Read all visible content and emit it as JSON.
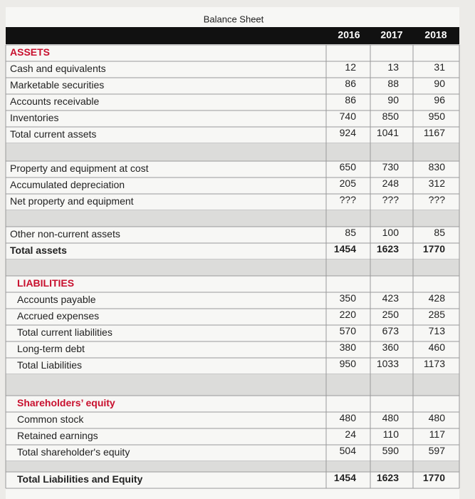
{
  "title": "Balance Sheet",
  "columns": [
    2016,
    2017,
    2018
  ],
  "sections": [
    {
      "heading": "ASSETS",
      "rows": [
        {
          "label": "Cash and equivalents",
          "values": [
            12,
            13,
            31
          ]
        },
        {
          "label": "Marketable securities",
          "values": [
            86,
            88,
            90
          ]
        },
        {
          "label": "Accounts receivable",
          "values": [
            86,
            90,
            96
          ]
        },
        {
          "label": "Inventories",
          "values": [
            740,
            850,
            950
          ]
        },
        {
          "label": "Total current assets",
          "values": [
            924,
            1041,
            1167
          ]
        }
      ]
    },
    {
      "rows": [
        {
          "label": "Property and equipment at cost",
          "values": [
            650,
            730,
            830
          ]
        },
        {
          "label": "Accumulated depreciation",
          "values": [
            205,
            248,
            312
          ]
        },
        {
          "label": "Net property and equipment",
          "values": [
            "???",
            "???",
            "???"
          ]
        }
      ]
    },
    {
      "rows": [
        {
          "label": "Other non-current assets",
          "values": [
            85,
            100,
            85
          ]
        },
        {
          "label": "Total assets",
          "values": [
            1454,
            1623,
            1770
          ],
          "bold": true
        }
      ]
    },
    {
      "heading": "LIABILITIES",
      "rows": [
        {
          "label": "Accounts payable",
          "values": [
            350,
            423,
            428
          ]
        },
        {
          "label": "Accrued expenses",
          "values": [
            220,
            250,
            285
          ]
        },
        {
          "label": "Total current liabilities",
          "values": [
            570,
            673,
            713
          ]
        },
        {
          "label": "Long-term debt",
          "values": [
            380,
            360,
            460
          ]
        },
        {
          "label": "Total Liabilities",
          "values": [
            950,
            1033,
            1173
          ]
        }
      ]
    },
    {
      "heading": "Shareholders’ equity",
      "rows": [
        {
          "label": "Common stock",
          "values": [
            480,
            480,
            480
          ]
        },
        {
          "label": "Retained earnings",
          "values": [
            24,
            110,
            117
          ]
        },
        {
          "label": "Total shareholder's equity",
          "values": [
            504,
            590,
            597
          ]
        }
      ]
    },
    {
      "rows": [
        {
          "label": "Total Liabilities and Equity",
          "values": [
            1454,
            1623,
            1770
          ],
          "bold": true
        }
      ]
    }
  ]
}
